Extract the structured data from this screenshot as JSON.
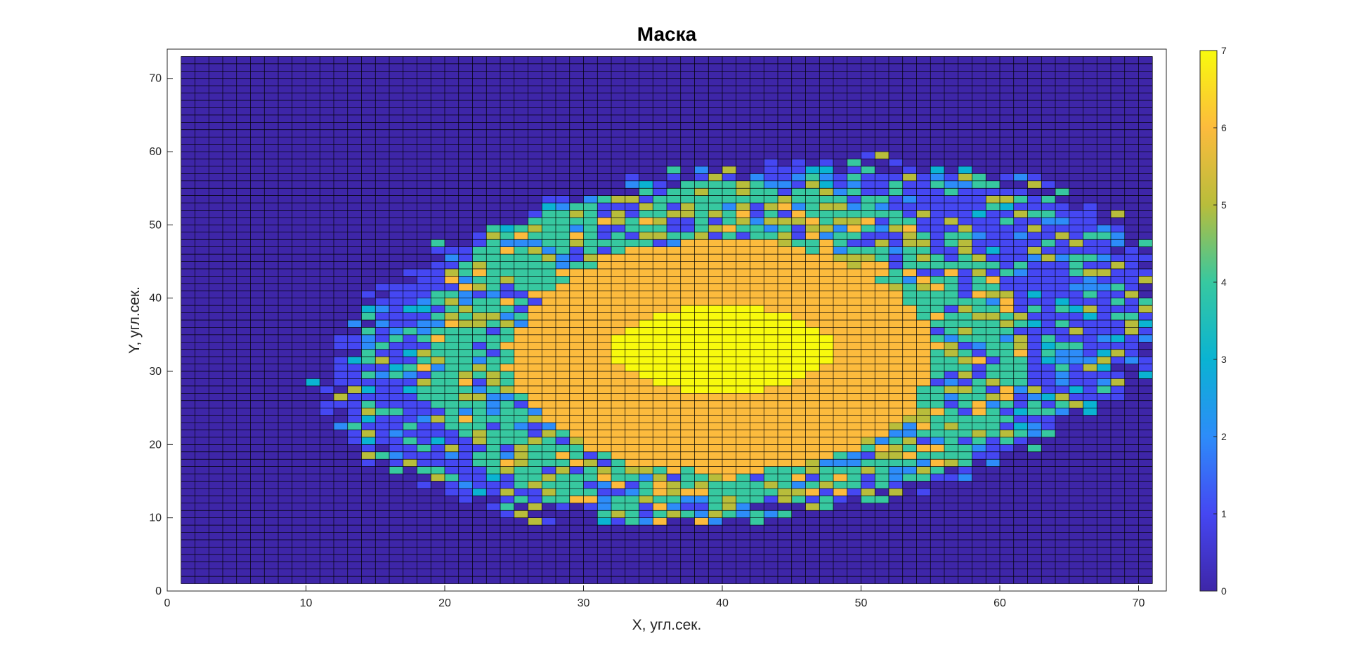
{
  "chart_data": {
    "type": "heatmap",
    "title": "Маска",
    "xlabel": "X, угл.сек.",
    "ylabel": "Y, угл.сек.",
    "xlim": [
      0,
      72
    ],
    "ylim": [
      0,
      74
    ],
    "x_ticks": [
      0,
      10,
      20,
      30,
      40,
      50,
      60,
      70
    ],
    "y_ticks": [
      0,
      10,
      20,
      30,
      40,
      50,
      60,
      70
    ],
    "grid_x_range": [
      1,
      71
    ],
    "grid_y_range": [
      1,
      73
    ],
    "colorbar": {
      "limits": [
        0,
        7
      ],
      "ticks": [
        0,
        1,
        2,
        3,
        4,
        5,
        6,
        7
      ],
      "colormap": "parula",
      "colors": [
        "#3e26a8",
        "#4547f2",
        "#2d8cf9",
        "#0ab3d2",
        "#37c8a0",
        "#b8bd3b",
        "#fcbb3d",
        "#f8fa0d"
      ]
    },
    "regions": [
      {
        "name": "background",
        "value": 0
      },
      {
        "name": "outer-mask",
        "value": 1,
        "note": "scattered 1–5 around the core"
      },
      {
        "name": "core",
        "value": 6,
        "center": [
          40,
          32
        ],
        "radii": [
          15,
          16
        ]
      },
      {
        "name": "peak",
        "value": 7,
        "center": [
          40,
          33
        ],
        "radii": [
          8,
          6
        ]
      }
    ]
  }
}
